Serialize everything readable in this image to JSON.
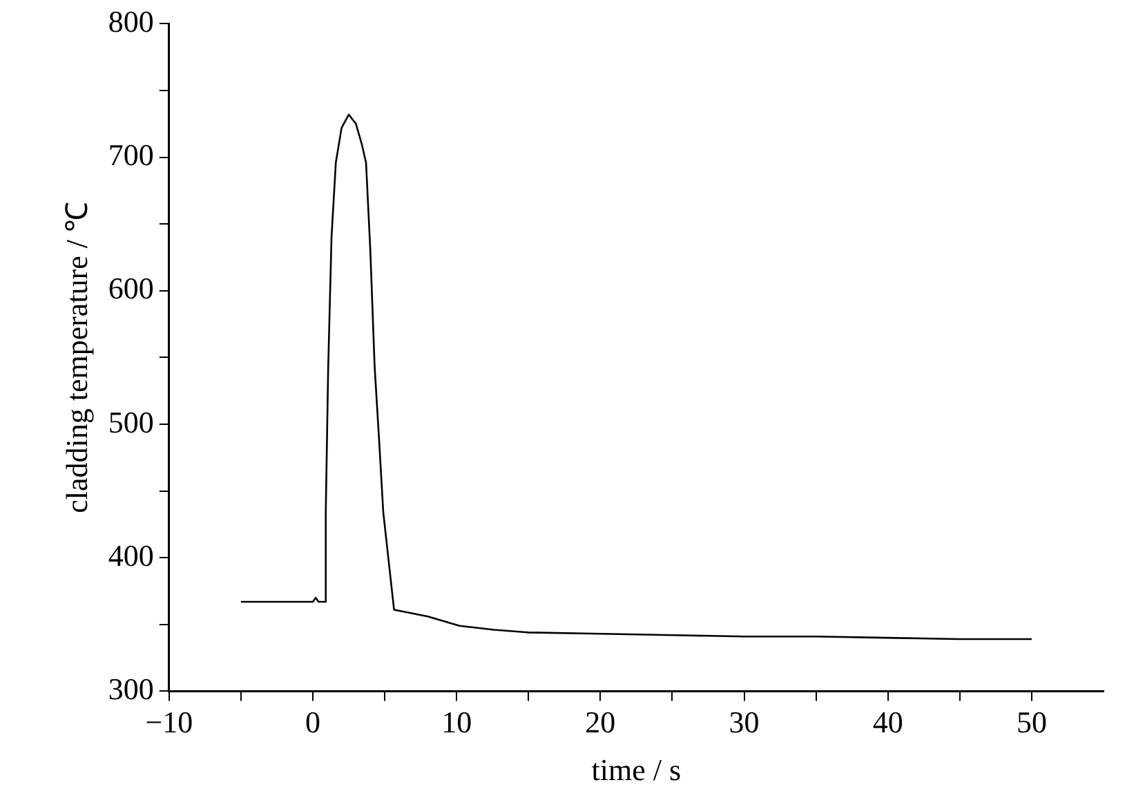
{
  "chart_data": {
    "type": "line",
    "xlabel": "time / s",
    "ylabel": "cladding temperature / ℃",
    "series": [
      {
        "color": "#000000",
        "x": [
          -5,
          0,
          0.2,
          0.4,
          0.85,
          0.9,
          1.07,
          1.3,
          1.6,
          2.0,
          2.5,
          3.0,
          3.4,
          3.7,
          4.0,
          4.3,
          4.6,
          4.9,
          5.65,
          8,
          10.2,
          12.6,
          15,
          20,
          25,
          30,
          35,
          40,
          45,
          50
        ],
        "values": [
          367,
          367,
          370,
          367,
          367,
          434,
          543,
          640,
          696,
          722,
          732,
          725,
          710,
          696,
          630,
          543,
          490,
          434,
          361,
          356,
          349,
          346,
          344,
          343,
          342,
          341,
          341,
          340,
          339,
          339
        ]
      }
    ],
    "xlim": [
      -10,
      55
    ],
    "xticks": [
      -10,
      0,
      10,
      20,
      30,
      40,
      50
    ],
    "ylim": [
      300,
      800
    ],
    "yticks": [
      300,
      400,
      500,
      600,
      700,
      800
    ],
    "grid": false,
    "legend": false,
    "marker": "none",
    "line_style": "solid"
  }
}
